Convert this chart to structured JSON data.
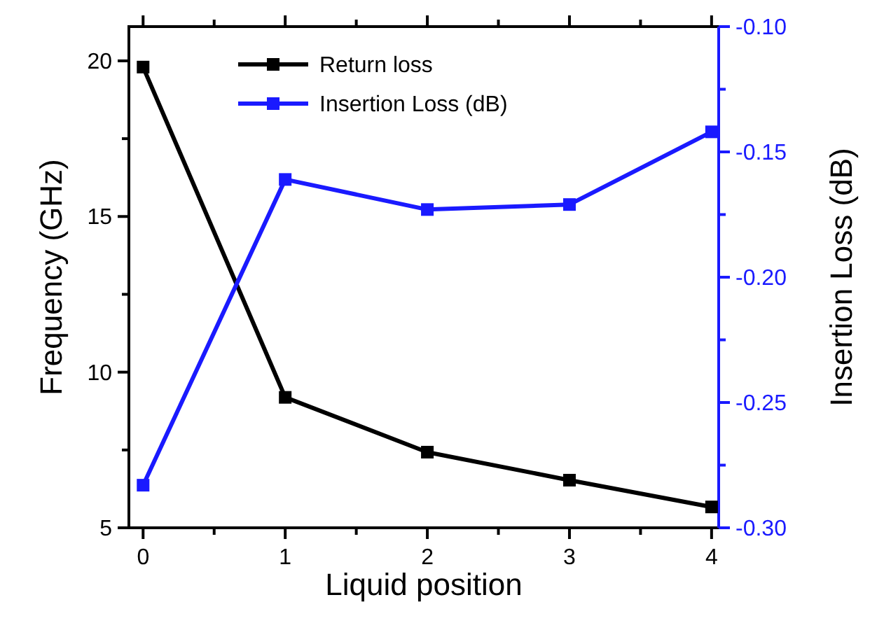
{
  "chart_data": {
    "type": "line",
    "xlabel": "Liquid position",
    "ylabel": "Frequency (GHz)",
    "y2label": "Insertion Loss (dB)",
    "x": [
      0,
      1,
      2,
      3,
      4
    ],
    "xlim": [
      -0.1,
      4.05
    ],
    "xticks": [
      0,
      1,
      2,
      3,
      4
    ],
    "ylim": [
      5,
      21.1
    ],
    "yticks": [
      5,
      10,
      15,
      20
    ],
    "y2lim": [
      -0.3,
      -0.1
    ],
    "y2ticks": [
      {
        "value": -0.3,
        "label": "-0.30"
      },
      {
        "value": -0.25,
        "label": "-0.25"
      },
      {
        "value": -0.2,
        "label": "-0.20"
      },
      {
        "value": -0.15,
        "label": "-0.15"
      },
      {
        "value": -0.1,
        "label": "-0.10"
      }
    ],
    "marker": "square",
    "legend": "top",
    "grid": false,
    "series": [
      {
        "name": "Return loss",
        "color": "#000000",
        "values": [
          19.8,
          9.19,
          7.43,
          6.53,
          5.67
        ]
      },
      {
        "name": "Insertion Loss (dB)",
        "color": "#1a1aff",
        "axis": "y2",
        "values": [
          -0.283,
          -0.161,
          -0.173,
          -0.171,
          -0.142
        ]
      }
    ]
  }
}
